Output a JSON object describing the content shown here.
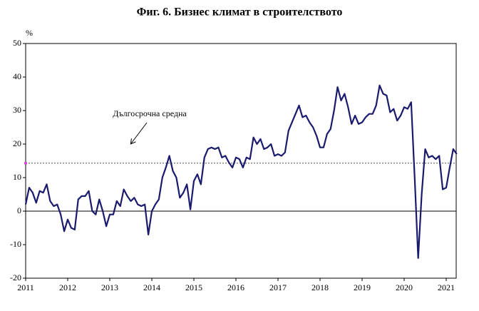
{
  "chart_data": {
    "type": "line",
    "title": "Фиг. 6. Бизнес климат в строителството",
    "y_unit_label": "%",
    "annotation": "Дългосрочна средна",
    "average": 14.3,
    "categories": [
      "2011",
      null,
      null,
      null,
      null,
      null,
      null,
      null,
      null,
      null,
      null,
      null,
      "2012",
      null,
      null,
      null,
      null,
      null,
      null,
      null,
      null,
      null,
      null,
      null,
      "2013",
      null,
      null,
      null,
      null,
      null,
      null,
      null,
      null,
      null,
      null,
      null,
      "2014",
      null,
      null,
      null,
      null,
      null,
      null,
      null,
      null,
      null,
      null,
      null,
      "2015",
      null,
      null,
      null,
      null,
      null,
      null,
      null,
      null,
      null,
      null,
      null,
      "2016",
      null,
      null,
      null,
      null,
      null,
      null,
      null,
      null,
      null,
      null,
      null,
      "2017",
      null,
      null,
      null,
      null,
      null,
      null,
      null,
      null,
      null,
      null,
      null,
      "2018",
      null,
      null,
      null,
      null,
      null,
      null,
      null,
      null,
      null,
      null,
      null,
      "2019",
      null,
      null,
      null,
      null,
      null,
      null,
      null,
      null,
      null,
      null,
      null,
      "2020",
      null,
      null,
      null,
      null,
      null,
      null,
      null,
      null,
      null,
      null,
      null,
      "2021",
      null,
      null,
      null
    ],
    "series": [
      {
        "color": "#1a1a6e",
        "values": [
          2,
          7,
          5.5,
          2.5,
          6,
          5.5,
          8,
          3,
          1.5,
          2,
          -1,
          -6,
          -2.5,
          -5,
          -5.5,
          3.5,
          4.5,
          4.5,
          6,
          0,
          -1,
          3.5,
          0,
          -4.5,
          -1,
          -1,
          3,
          1.5,
          6.5,
          4.5,
          3,
          4,
          2,
          1.5,
          2,
          -7,
          0,
          2,
          3.5,
          10,
          13,
          16.5,
          12,
          10,
          4,
          5.5,
          8,
          0.5,
          9,
          11,
          8,
          16,
          18.5,
          19,
          18.5,
          19,
          16,
          16.5,
          14.5,
          13,
          16,
          15.5,
          13,
          16,
          15.5,
          22,
          20,
          21.5,
          18.5,
          19,
          20,
          16.5,
          17,
          16.5,
          17.5,
          24,
          26.5,
          29,
          31.5,
          28,
          28.5,
          26.5,
          25,
          22.5,
          19,
          19,
          23,
          24.5,
          30,
          37,
          33,
          35,
          31,
          26,
          28.5,
          26,
          26.5,
          28,
          29,
          29,
          31.5,
          37.5,
          35,
          34.5,
          29.5,
          30.5,
          27,
          28.5,
          31,
          30.5,
          32.5,
          10,
          -14,
          5,
          18.5,
          16,
          16.5,
          15.5,
          16.5,
          6.5,
          7,
          13,
          18.5,
          17
        ]
      }
    ],
    "ylim": [
      -20,
      50
    ],
    "yticks": [
      -20,
      -10,
      0,
      10,
      20,
      30,
      40,
      50
    ]
  }
}
